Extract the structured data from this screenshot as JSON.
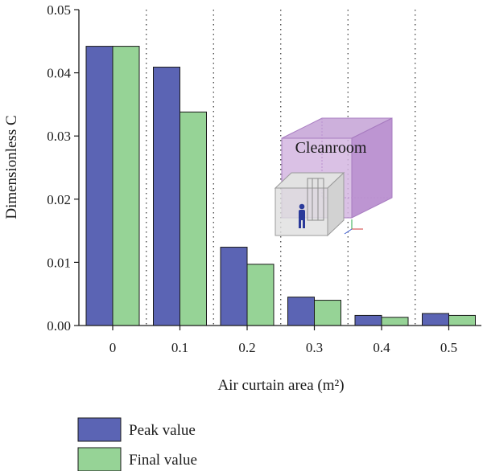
{
  "chart_data": {
    "type": "bar",
    "categories": [
      "0",
      "0.1",
      "0.2",
      "0.3",
      "0.4",
      "0.5"
    ],
    "series": [
      {
        "name": "Peak value",
        "values": [
          0.0442,
          0.0409,
          0.0124,
          0.0045,
          0.0016,
          0.0019
        ]
      },
      {
        "name": "Final value",
        "values": [
          0.0442,
          0.0338,
          0.0097,
          0.004,
          0.0013,
          0.0016
        ]
      }
    ],
    "xlabel": "Air curtain area (m²)",
    "ylabel": "Dimensionless C",
    "ylim": [
      0,
      0.05
    ],
    "yticks": [
      "0.00",
      "0.01",
      "0.02",
      "0.03",
      "0.04",
      "0.05"
    ],
    "grid": "vertical dotted separators between categories",
    "legend": "bottom-left, below plot",
    "inset_label": "Cleanroom"
  },
  "colors": {
    "peak": "#5b64b4",
    "final": "#96d396",
    "inset_room": "#c9a6d9",
    "inset_room_edge": "#a77bc0",
    "inset_box": "#c8c8c8",
    "inset_person": "#2b3a9a"
  }
}
